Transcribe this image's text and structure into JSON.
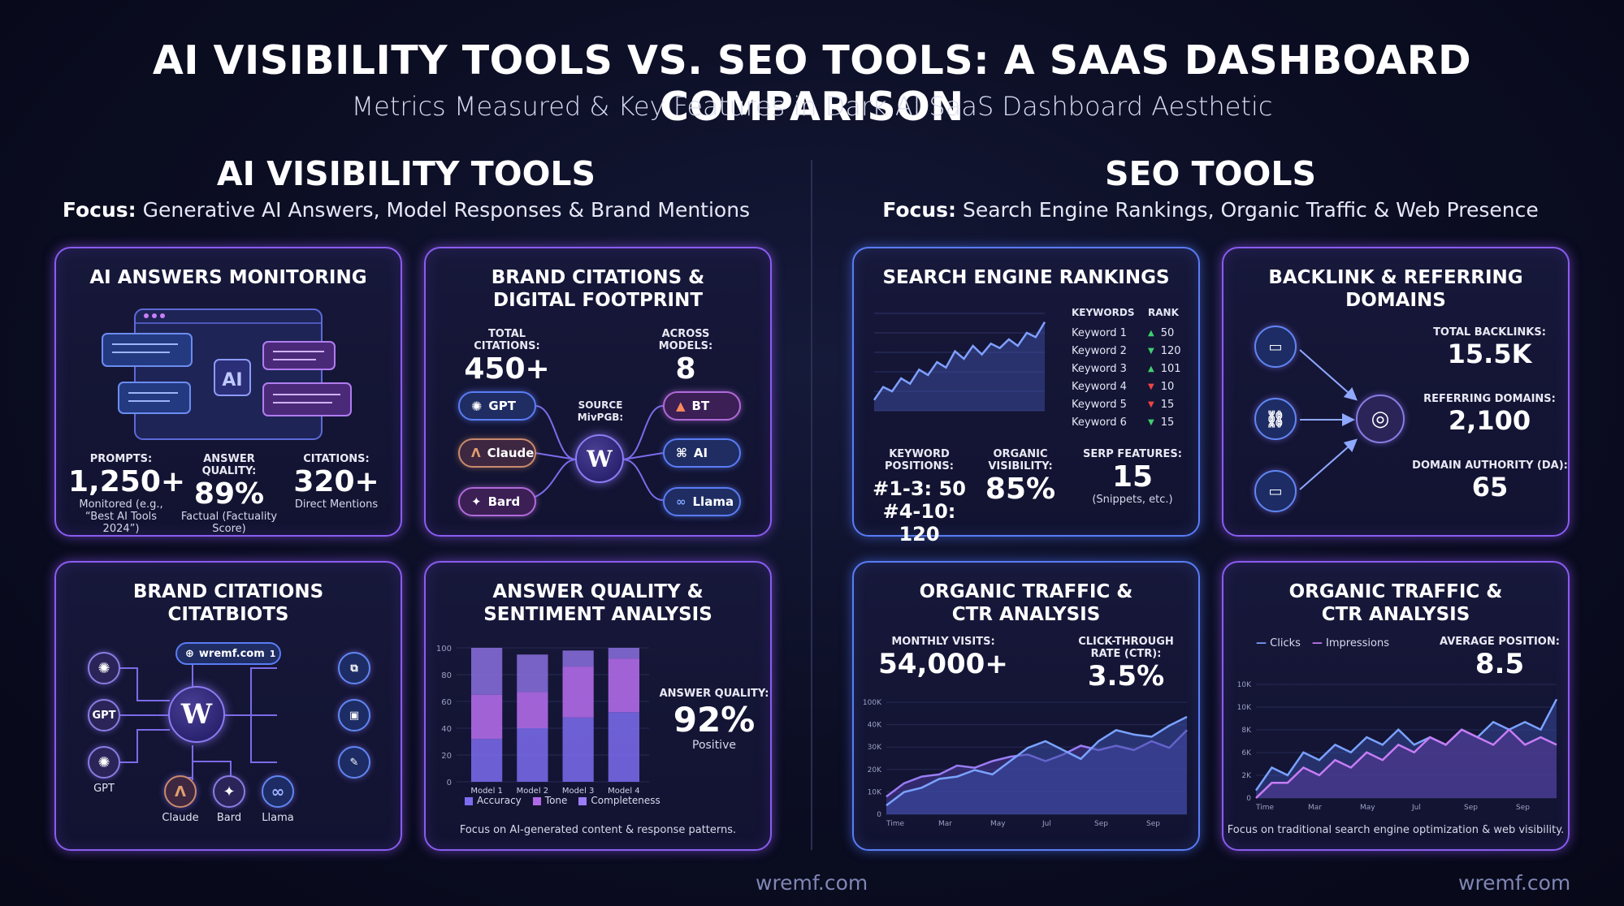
{
  "header": {
    "title": "AI VISIBILITY TOOLS VS. SEO TOOLS: A SAAS DASHBOARD COMPARISON",
    "subtitle": "Metrics Measured & Key Features in Dark AI SaaS Dashboard Aesthetic"
  },
  "ai_section": {
    "title": "AI VISIBILITY TOOLS",
    "focus_label": "Focus:",
    "focus_text": "Generative AI Answers, Model Responses & Brand Mentions"
  },
  "seo_section": {
    "title": "SEO TOOLS",
    "focus_label": "Focus:",
    "focus_text": "Search Engine Rankings, Organic Traffic & Web Presence"
  },
  "ai_answers": {
    "title": "AI ANSWERS MONITORING",
    "hub_label": "AI",
    "metrics": [
      {
        "label": "PROMPTS:",
        "value": "1,250+",
        "caption": "Monitored (e.g., “Best AI Tools 2024”)"
      },
      {
        "label": "ANSWER QUALITY:",
        "value": "89%",
        "caption": "Factual (Factuality Score)"
      },
      {
        "label": "CITATIONS:",
        "value": "320+",
        "caption": "Direct Mentions"
      }
    ]
  },
  "brand_citations": {
    "title_line1": "BRAND CITATIONS &",
    "title_line2": "DIGITAL FOOTPRINT",
    "total_label": "TOTAL CITATIONS:",
    "total_value": "450+",
    "models_label": "ACROSS MODELS:",
    "models_value": "8",
    "source_label": "SOURCE MivPGB:",
    "hub_label": "W",
    "left_pills": [
      "GPT",
      "Claude",
      "Bard"
    ],
    "right_pills": [
      "BT",
      "AI",
      "Llama"
    ]
  },
  "citatbiots": {
    "title_line1": "BRAND CITATIONS",
    "title_line2": "CITATBIOTS",
    "domain_chip": "wremf.com",
    "domain_chip_count": "1",
    "hub_label": "W",
    "left_nodes": [
      "",
      "GPT",
      ""
    ],
    "left_caption": "GPT",
    "bottom_nodes": [
      "Claude",
      "Bard",
      "Llama"
    ]
  },
  "answer_quality": {
    "title_line1": "ANSWER QUALITY &",
    "title_line2": "SENTIMENT ANALYSIS",
    "metric_label": "ANSWER QUALITY:",
    "metric_value": "92%",
    "metric_caption": "Positive",
    "footer": "Focus on AI-generated content & response patterns."
  },
  "serp": {
    "title": "SEARCH ENGINE RANKINGS",
    "table_headers": [
      "KEYWORDS",
      "RANK"
    ],
    "rows": [
      {
        "keyword": "Keyword 1",
        "dir": "up",
        "rank": "50"
      },
      {
        "keyword": "Keyword 2",
        "dir": "down",
        "rank": "120"
      },
      {
        "keyword": "Keyword 3",
        "dir": "up",
        "rank": "101"
      },
      {
        "keyword": "Keyword 4",
        "dir": "down-red",
        "rank": "10"
      },
      {
        "keyword": "Keyword 5",
        "dir": "down-red",
        "rank": "15"
      },
      {
        "keyword": "Keyword 6",
        "dir": "down",
        "rank": "15"
      }
    ],
    "positions_label": "KEYWORD POSITIONS:",
    "positions_line1": "#1-3: 50",
    "positions_line2": "#4-10: 120",
    "visibility_label": "ORGANIC VISIBILITY:",
    "visibility_value": "85%",
    "serp_label": "SERP FEATURES:",
    "serp_value": "15",
    "serp_caption": "(Snippets, etc.)"
  },
  "backlinks": {
    "title_line1": "BACKLINK & REFERRING",
    "title_line2": "DOMAINS",
    "total_label": "TOTAL BACKLINKS:",
    "total_value": "15.5K",
    "ref_label": "REFERRING DOMAINS:",
    "ref_value": "2,100",
    "da_label": "DOMAIN AUTHORITY (DA):",
    "da_value": "65"
  },
  "traffic1": {
    "title_line1": "ORGANIC TRAFFIC &",
    "title_line2": "CTR ANALYSIS",
    "visits_label": "MONTHLY VISITS:",
    "visits_value": "54,000+",
    "ctr_label": "CLICK-THROUGH RATE (CTR):",
    "ctr_value": "3.5%"
  },
  "traffic2": {
    "title_line1": "ORGANIC TRAFFIC &",
    "title_line2": "CTR ANALYSIS",
    "legend_clicks": "Clicks",
    "legend_impressions": "Impressions",
    "avg_label": "AVERAGE POSITION:",
    "avg_value": "8.5",
    "footer": "Focus on traditional search engine optimization & web visibility."
  },
  "watermarks": {
    "left": "wremf.com",
    "right": "wremf.com"
  },
  "colors": {
    "accent_purple": "#8a5cf0",
    "accent_blue": "#5a7cf5",
    "up_green": "#3ecf6e",
    "down_red": "#ef4444",
    "accuracy": "#7c6cf0",
    "tone": "#b06ae8",
    "completeness": "#9a7cf5"
  },
  "chart_data": [
    {
      "type": "line",
      "title": "",
      "note": "SEARCH ENGINE RANKINGS mini trend (unlabeled axes, relative values)",
      "x": [
        1,
        2,
        3,
        4,
        5,
        6,
        7,
        8,
        9,
        10,
        11,
        12,
        13,
        14,
        15,
        16,
        17,
        18,
        19,
        20
      ],
      "series": [
        {
          "values": [
            10,
            22,
            18,
            30,
            25,
            38,
            33,
            45,
            40,
            55,
            48,
            60,
            52,
            62,
            58,
            66,
            60,
            72,
            68,
            82
          ]
        }
      ]
    },
    {
      "type": "bar",
      "title": "",
      "categories": [
        "Model 1",
        "Model 2",
        "Model 3",
        "Model 4"
      ],
      "ylim": [
        0,
        100
      ],
      "yticks": [
        "100",
        "80",
        "60",
        "40",
        "20",
        "0"
      ],
      "series": [
        {
          "name": "Accuracy",
          "values": [
            32,
            40,
            48,
            52
          ]
        },
        {
          "name": "Tone",
          "values": [
            33,
            27,
            38,
            40
          ]
        },
        {
          "name": "Completeness",
          "values": [
            35,
            28,
            12,
            8
          ]
        }
      ]
    },
    {
      "type": "area",
      "title": "",
      "x_ticks": [
        "Time",
        "Mar",
        "May",
        "Jul",
        "Sep",
        "Sep"
      ],
      "y_ticks": [
        "100K",
        "40K",
        "30K",
        "20K",
        "10K",
        "0"
      ],
      "series": [
        {
          "name": "",
          "values": [
            8,
            14,
            17,
            18,
            22,
            21,
            24,
            26,
            27,
            24,
            27,
            31,
            29,
            31,
            29,
            33,
            30,
            38
          ]
        },
        {
          "name": "",
          "values": [
            4,
            10,
            12,
            16,
            17,
            20,
            18,
            24,
            30,
            33,
            29,
            25,
            33,
            38,
            36,
            35,
            40,
            44
          ]
        }
      ]
    },
    {
      "type": "area",
      "title": "",
      "legend": [
        "Clicks",
        "Impressions"
      ],
      "x_ticks": [
        "Time",
        "Mar",
        "May",
        "Jul",
        "Sep",
        "Sep"
      ],
      "y_ticks": [
        "10K",
        "10K",
        "8K",
        "6K",
        "2K",
        "0"
      ],
      "series": [
        {
          "name": "Clicks",
          "values": [
            1,
            4,
            3,
            6,
            5,
            7,
            6,
            8,
            7,
            9,
            7,
            8,
            7,
            9,
            8,
            10,
            9,
            10,
            9,
            13
          ]
        },
        {
          "name": "Impressions",
          "values": [
            0,
            2,
            2,
            4,
            3,
            5,
            4,
            6,
            5,
            7,
            6,
            8,
            7,
            9,
            8,
            7,
            9,
            7,
            8,
            7
          ]
        }
      ]
    }
  ]
}
